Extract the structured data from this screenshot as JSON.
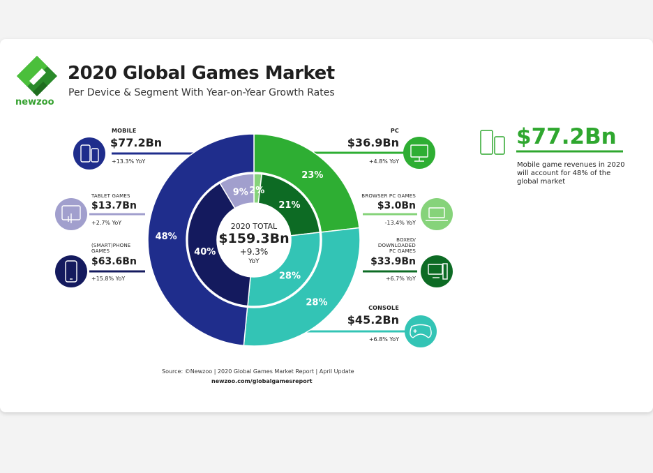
{
  "title": "2020 Global Games Market",
  "subtitle": "Per Device & Segment With Year-on-Year Growth Rates",
  "brand": "newzoo",
  "colors": {
    "mobile": "#1f2d8c",
    "tablet": "#a19fcd",
    "phone": "#141a5e",
    "pc": "#2eae33",
    "browser": "#86d37a",
    "boxed": "#0d6b24",
    "console": "#33c4b5",
    "brand": "#35a12f"
  },
  "center": {
    "label": "2020 TOTAL",
    "value": "$159.3Bn",
    "growth": "+9.3%",
    "growth_unit": "YoY"
  },
  "segments": {
    "mobile": {
      "name": "MOBILE",
      "value": "$77.2Bn",
      "yoy": "+13.3% YoY",
      "icon": "mobile-devices-icon"
    },
    "tablet": {
      "name": "TABLET GAMES",
      "value": "$13.7Bn",
      "yoy": "+2.7% YoY",
      "icon": "tablet-icon"
    },
    "phone": {
      "name": "(SMART)PHONE",
      "name2": "GAMES",
      "value": "$63.6Bn",
      "yoy": "+15.8% YoY",
      "icon": "smartphone-icon"
    },
    "pc": {
      "name": "PC",
      "value": "$36.9Bn",
      "yoy": "+4.8% YoY",
      "icon": "monitor-icon"
    },
    "browser": {
      "name": "BROWSER PC GAMES",
      "value": "$3.0Bn",
      "yoy": "-13.4% YoY",
      "icon": "laptop-icon"
    },
    "boxed": {
      "name": "BOXED/",
      "name2": "DOWNLOADED",
      "name3": "PC GAMES",
      "value": "$33.9Bn",
      "yoy": "+6.7% YoY",
      "icon": "desktop-computer-icon"
    },
    "console": {
      "name": "CONSOLE",
      "value": "$45.2Bn",
      "yoy": "+6.8% YoY",
      "icon": "gamepad-icon"
    }
  },
  "callout": {
    "value": "$77.2Bn",
    "text": "Mobile game revenues in 2020 will account for 48% of the global market",
    "icon": "mobile-devices-icon"
  },
  "source": "Source: ©Newzoo | 2020 Global Games Market Report | April Update",
  "source_url": "newzoo.com/globalgamesreport",
  "chart_data": {
    "type": "pie",
    "title": "2020 Global Games Market",
    "total": {
      "label": "2020 TOTAL",
      "value": "$159.3Bn",
      "growth": "+9.3% YoY"
    },
    "outer_ring": [
      {
        "name": "PC",
        "value": 36.9,
        "percent": 23,
        "label": "23%",
        "yoy": 4.8
      },
      {
        "name": "CONSOLE",
        "value": 45.2,
        "percent": 28,
        "label": "28%",
        "yoy": 6.8
      },
      {
        "name": "MOBILE",
        "value": 77.2,
        "percent": 48,
        "label": "48%",
        "yoy": 13.3
      }
    ],
    "inner_ring": [
      {
        "name": "BROWSER PC GAMES",
        "value": 3.0,
        "percent": 2,
        "label": "2%",
        "yoy": -13.4
      },
      {
        "name": "BOXED/DOWNLOADED PC GAMES",
        "value": 33.9,
        "percent": 21,
        "label": "21%",
        "yoy": 6.7
      },
      {
        "name": "CONSOLE",
        "value": 45.2,
        "percent": 28,
        "label": "28%",
        "yoy": 6.8
      },
      {
        "name": "(SMART)PHONE GAMES",
        "value": 63.6,
        "percent": 40,
        "label": "40%",
        "yoy": 15.8
      },
      {
        "name": "TABLET GAMES",
        "value": 13.7,
        "percent": 9,
        "label": "9%",
        "yoy": 2.7
      }
    ]
  }
}
